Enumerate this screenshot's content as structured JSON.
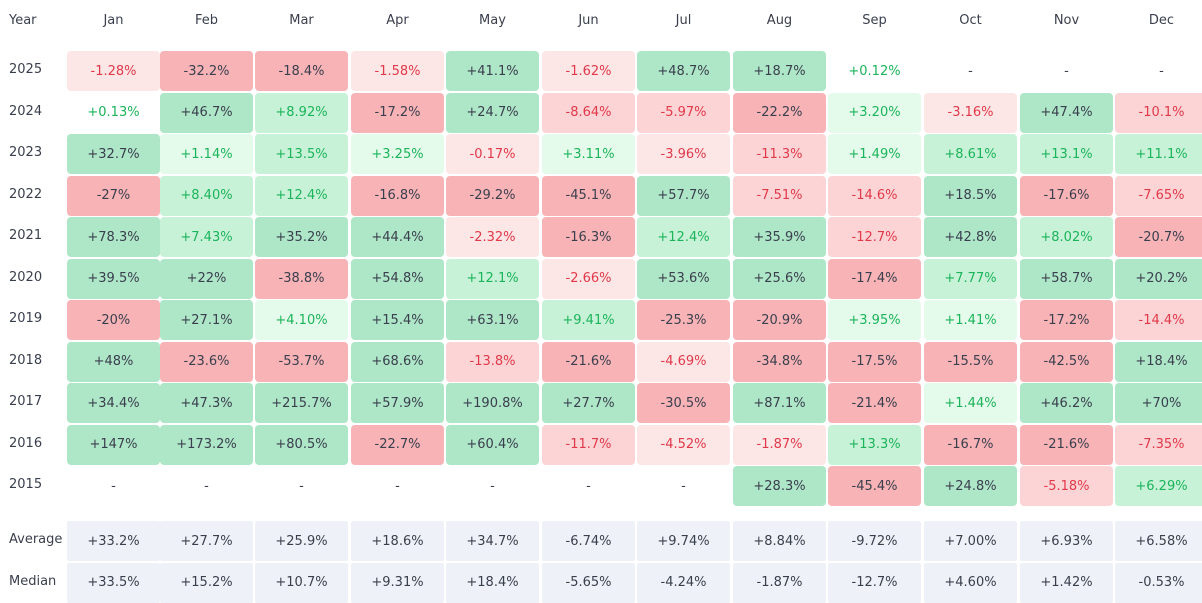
{
  "chart_data": {
    "type": "heatmap",
    "title": "",
    "corner_label": "Year",
    "columns": [
      "Jan",
      "Feb",
      "Mar",
      "Apr",
      "May",
      "Jun",
      "Jul",
      "Aug",
      "Sep",
      "Oct",
      "Nov",
      "Dec"
    ],
    "rows": [
      {
        "label": "2025",
        "values": [
          "-1.28%",
          "-32.2%",
          "-18.4%",
          "-1.58%",
          "+41.1%",
          "-1.62%",
          "+48.7%",
          "+18.7%",
          "+0.12%",
          "-",
          "-",
          "-"
        ]
      },
      {
        "label": "2024",
        "values": [
          "+0.13%",
          "+46.7%",
          "+8.92%",
          "-17.2%",
          "+24.7%",
          "-8.64%",
          "-5.97%",
          "-22.2%",
          "+3.20%",
          "-3.16%",
          "+47.4%",
          "-10.1%"
        ]
      },
      {
        "label": "2023",
        "values": [
          "+32.7%",
          "+1.14%",
          "+13.5%",
          "+3.25%",
          "-0.17%",
          "+3.11%",
          "-3.96%",
          "-11.3%",
          "+1.49%",
          "+8.61%",
          "+13.1%",
          "+11.1%"
        ]
      },
      {
        "label": "2022",
        "values": [
          "-27%",
          "+8.40%",
          "+12.4%",
          "-16.8%",
          "-29.2%",
          "-45.1%",
          "+57.7%",
          "-7.51%",
          "-14.6%",
          "+18.5%",
          "-17.6%",
          "-7.65%"
        ]
      },
      {
        "label": "2021",
        "values": [
          "+78.3%",
          "+7.43%",
          "+35.2%",
          "+44.4%",
          "-2.32%",
          "-16.3%",
          "+12.4%",
          "+35.9%",
          "-12.7%",
          "+42.8%",
          "+8.02%",
          "-20.7%"
        ]
      },
      {
        "label": "2020",
        "values": [
          "+39.5%",
          "+22%",
          "-38.8%",
          "+54.8%",
          "+12.1%",
          "-2.66%",
          "+53.6%",
          "+25.6%",
          "-17.4%",
          "+7.77%",
          "+58.7%",
          "+20.2%"
        ]
      },
      {
        "label": "2019",
        "values": [
          "-20%",
          "+27.1%",
          "+4.10%",
          "+15.4%",
          "+63.1%",
          "+9.41%",
          "-25.3%",
          "-20.9%",
          "+3.95%",
          "+1.41%",
          "-17.2%",
          "-14.4%"
        ]
      },
      {
        "label": "2018",
        "values": [
          "+48%",
          "-23.6%",
          "-53.7%",
          "+68.6%",
          "-13.8%",
          "-21.6%",
          "-4.69%",
          "-34.8%",
          "-17.5%",
          "-15.5%",
          "-42.5%",
          "+18.4%"
        ]
      },
      {
        "label": "2017",
        "values": [
          "+34.4%",
          "+47.3%",
          "+215.7%",
          "+57.9%",
          "+190.8%",
          "+27.7%",
          "-30.5%",
          "+87.1%",
          "-21.4%",
          "+1.44%",
          "+46.2%",
          "+70%"
        ]
      },
      {
        "label": "2016",
        "values": [
          "+147%",
          "+173.2%",
          "+80.5%",
          "-22.7%",
          "+60.4%",
          "-11.7%",
          "-4.52%",
          "-1.87%",
          "+13.3%",
          "-16.7%",
          "-21.6%",
          "-7.35%"
        ]
      },
      {
        "label": "2015",
        "values": [
          "-",
          "-",
          "-",
          "-",
          "-",
          "-",
          "-",
          "+28.3%",
          "-45.4%",
          "+24.8%",
          "-5.18%",
          "+6.29%"
        ]
      }
    ],
    "summary_rows": [
      {
        "label": "Average",
        "values": [
          "+33.2%",
          "+27.7%",
          "+25.9%",
          "+18.6%",
          "+34.7%",
          "-6.74%",
          "+9.74%",
          "+8.84%",
          "-9.72%",
          "+7.00%",
          "+6.93%",
          "+6.58%"
        ]
      },
      {
        "label": "Median",
        "values": [
          "+33.5%",
          "+15.2%",
          "+10.7%",
          "+9.31%",
          "+18.4%",
          "-5.65%",
          "-4.24%",
          "-1.87%",
          "-12.7%",
          "+4.60%",
          "+1.42%",
          "-0.53%"
        ]
      }
    ],
    "colors": {
      "positive_strong": "#aee6c8",
      "positive_mid": "#c8f2d8",
      "positive_light": "#e4fbec",
      "negative_strong": "#f7b3b6",
      "negative_mid": "#fcd4d5",
      "negative_light": "#fde6e6",
      "summary_bg": "#eef2f8",
      "positive_text": "#1bb45a",
      "negative_text": "#e0394a",
      "neutral_text": "#3a3f4d"
    }
  }
}
